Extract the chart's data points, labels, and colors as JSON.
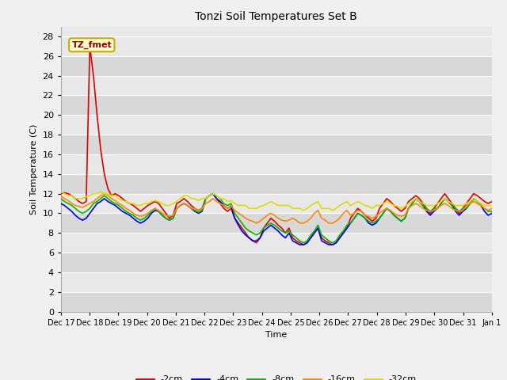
{
  "title": "Tonzi Soil Temperatures Set B",
  "xlabel": "Time",
  "ylabel": "Soil Temperature (C)",
  "annotation_text": "TZ_fmet",
  "annotation_color": "#8b0000",
  "annotation_bg": "#ffffcc",
  "annotation_border": "#ccaa00",
  "ylim": [
    0,
    29
  ],
  "yticks": [
    0,
    2,
    4,
    6,
    8,
    10,
    12,
    14,
    16,
    18,
    20,
    22,
    24,
    26,
    28
  ],
  "x_labels": [
    "Dec 17",
    "Dec 18",
    "Dec 19",
    "Dec 20",
    "Dec 21",
    "Dec 22",
    "Dec 23",
    "Dec 24",
    "Dec 25",
    "Dec 26",
    "Dec 27",
    "Dec 28",
    "Dec 29",
    "Dec 30",
    "Dec 31",
    "Jan 1"
  ],
  "bg_color": "#e8e8e8",
  "grid_color": "#ffffff",
  "series": {
    "-2cm": {
      "color": "#dd0000",
      "lw": 1.2
    },
    "-4cm": {
      "color": "#0000ee",
      "lw": 1.2
    },
    "-8cm": {
      "color": "#00bb00",
      "lw": 1.2
    },
    "-16cm": {
      "color": "#ff8800",
      "lw": 1.2
    },
    "-32cm": {
      "color": "#dddd00",
      "lw": 1.2
    }
  },
  "n_per_day": 8,
  "days": 15,
  "data": {
    "-2cm": [
      12.0,
      12.1,
      12.0,
      11.8,
      11.5,
      11.2,
      11.0,
      11.2,
      27.0,
      24.0,
      20.0,
      16.5,
      14.0,
      12.5,
      11.8,
      12.0,
      11.8,
      11.5,
      11.2,
      11.0,
      10.8,
      10.5,
      10.2,
      10.5,
      10.8,
      11.0,
      11.2,
      11.0,
      10.5,
      10.0,
      9.5,
      9.8,
      11.0,
      11.2,
      11.5,
      11.2,
      10.8,
      10.5,
      10.3,
      10.5,
      11.5,
      11.8,
      12.0,
      11.5,
      11.0,
      10.5,
      10.2,
      10.5,
      9.5,
      9.0,
      8.5,
      8.0,
      7.5,
      7.2,
      7.0,
      7.5,
      8.5,
      9.0,
      9.5,
      9.2,
      8.8,
      8.5,
      8.0,
      8.5,
      7.5,
      7.2,
      7.0,
      6.8,
      7.0,
      7.5,
      8.0,
      8.5,
      7.5,
      7.2,
      7.0,
      6.8,
      7.0,
      7.5,
      8.0,
      8.5,
      9.5,
      10.0,
      10.5,
      10.2,
      9.8,
      9.5,
      9.2,
      9.5,
      10.5,
      11.0,
      11.5,
      11.2,
      10.8,
      10.5,
      10.2,
      10.5,
      11.2,
      11.5,
      11.8,
      11.5,
      11.0,
      10.5,
      10.0,
      10.5,
      11.0,
      11.5,
      12.0,
      11.5,
      11.0,
      10.5,
      10.0,
      10.5,
      11.0,
      11.5,
      12.0,
      11.8,
      11.5,
      11.2,
      11.0,
      11.2
    ],
    "-4cm": [
      11.0,
      10.8,
      10.5,
      10.2,
      9.8,
      9.5,
      9.3,
      9.5,
      10.0,
      10.5,
      11.0,
      11.2,
      11.5,
      11.2,
      11.0,
      10.8,
      10.5,
      10.2,
      10.0,
      9.8,
      9.5,
      9.2,
      9.0,
      9.2,
      9.5,
      10.0,
      10.3,
      10.2,
      9.8,
      9.5,
      9.3,
      9.5,
      10.5,
      10.8,
      11.0,
      10.8,
      10.5,
      10.2,
      10.0,
      10.2,
      11.5,
      11.8,
      12.0,
      11.5,
      11.2,
      10.8,
      10.5,
      10.8,
      9.5,
      8.8,
      8.2,
      7.8,
      7.5,
      7.2,
      7.2,
      7.5,
      8.2,
      8.5,
      8.8,
      8.5,
      8.2,
      7.8,
      7.5,
      8.0,
      7.2,
      7.0,
      6.8,
      6.8,
      7.0,
      7.5,
      8.0,
      8.5,
      7.2,
      7.0,
      6.8,
      6.8,
      7.0,
      7.5,
      8.0,
      8.5,
      9.0,
      9.5,
      10.0,
      9.8,
      9.5,
      9.0,
      8.8,
      9.0,
      9.5,
      10.0,
      10.5,
      10.2,
      9.8,
      9.5,
      9.2,
      9.5,
      10.5,
      11.0,
      11.5,
      11.2,
      10.8,
      10.2,
      9.8,
      10.2,
      10.5,
      11.0,
      11.5,
      11.2,
      10.8,
      10.2,
      9.8,
      10.2,
      10.5,
      11.0,
      11.5,
      11.2,
      10.8,
      10.2,
      9.8,
      10.0
    ],
    "-8cm": [
      11.5,
      11.2,
      11.0,
      10.8,
      10.5,
      10.2,
      10.0,
      10.2,
      10.5,
      11.0,
      11.2,
      11.5,
      11.8,
      11.5,
      11.2,
      11.0,
      10.8,
      10.5,
      10.2,
      10.0,
      9.8,
      9.5,
      9.3,
      9.5,
      9.8,
      10.2,
      10.5,
      10.2,
      9.8,
      9.5,
      9.3,
      9.5,
      10.5,
      10.8,
      11.0,
      10.8,
      10.5,
      10.3,
      10.1,
      10.3,
      11.5,
      11.8,
      12.0,
      11.8,
      11.5,
      11.0,
      10.8,
      11.0,
      10.0,
      9.5,
      9.0,
      8.5,
      8.2,
      8.0,
      7.8,
      8.0,
      8.5,
      8.8,
      9.0,
      8.8,
      8.5,
      8.2,
      8.0,
      8.2,
      7.8,
      7.5,
      7.2,
      7.0,
      7.2,
      7.8,
      8.2,
      8.8,
      7.8,
      7.5,
      7.2,
      7.0,
      7.2,
      7.8,
      8.2,
      8.8,
      9.0,
      9.5,
      10.0,
      9.8,
      9.5,
      9.2,
      9.0,
      9.2,
      9.5,
      10.0,
      10.5,
      10.2,
      9.8,
      9.5,
      9.2,
      9.5,
      10.5,
      11.0,
      11.5,
      11.2,
      10.8,
      10.5,
      10.2,
      10.5,
      10.5,
      11.0,
      11.5,
      11.2,
      10.8,
      10.5,
      10.2,
      10.5,
      10.5,
      11.0,
      11.5,
      11.2,
      10.8,
      10.5,
      10.2,
      10.2
    ],
    "-16cm": [
      11.8,
      11.5,
      11.3,
      11.0,
      10.8,
      10.7,
      10.6,
      10.8,
      11.0,
      11.2,
      11.5,
      11.8,
      12.0,
      11.8,
      11.5,
      11.3,
      11.0,
      10.8,
      10.5,
      10.3,
      10.0,
      9.8,
      9.7,
      9.8,
      10.0,
      10.3,
      10.5,
      10.3,
      10.0,
      9.8,
      9.7,
      9.8,
      10.5,
      10.8,
      11.0,
      10.8,
      10.5,
      10.5,
      10.3,
      10.5,
      11.0,
      11.2,
      11.5,
      11.2,
      11.0,
      10.8,
      10.5,
      10.8,
      10.3,
      10.0,
      9.8,
      9.5,
      9.3,
      9.2,
      9.0,
      9.2,
      9.5,
      9.8,
      10.0,
      9.8,
      9.5,
      9.3,
      9.2,
      9.3,
      9.5,
      9.3,
      9.0,
      9.0,
      9.2,
      9.5,
      10.0,
      10.3,
      9.5,
      9.3,
      9.0,
      9.0,
      9.2,
      9.5,
      10.0,
      10.3,
      9.8,
      10.0,
      10.3,
      10.2,
      9.8,
      9.7,
      9.5,
      9.7,
      10.0,
      10.3,
      10.5,
      10.3,
      10.0,
      9.8,
      9.7,
      9.8,
      10.5,
      10.8,
      11.0,
      10.8,
      10.5,
      10.3,
      10.2,
      10.3,
      10.5,
      10.8,
      11.0,
      10.8,
      10.5,
      10.3,
      10.2,
      10.3,
      10.8,
      11.0,
      11.2,
      11.0,
      10.8,
      10.5,
      10.3,
      10.5
    ],
    "-32cm": [
      12.2,
      12.0,
      11.8,
      11.8,
      11.5,
      11.5,
      11.5,
      11.7,
      11.8,
      12.0,
      12.0,
      12.2,
      12.0,
      12.0,
      11.8,
      11.8,
      11.5,
      11.3,
      11.2,
      11.0,
      11.0,
      10.8,
      10.8,
      11.0,
      11.0,
      11.2,
      11.3,
      11.2,
      11.0,
      10.8,
      10.8,
      11.0,
      11.2,
      11.5,
      11.8,
      11.8,
      11.5,
      11.5,
      11.3,
      11.5,
      11.5,
      11.8,
      12.0,
      11.8,
      11.5,
      11.5,
      11.2,
      11.3,
      11.0,
      10.8,
      10.8,
      10.8,
      10.5,
      10.5,
      10.5,
      10.7,
      10.8,
      11.0,
      11.2,
      11.0,
      10.8,
      10.8,
      10.8,
      10.8,
      10.5,
      10.5,
      10.5,
      10.3,
      10.5,
      10.8,
      11.0,
      11.2,
      10.5,
      10.5,
      10.5,
      10.3,
      10.5,
      10.8,
      11.0,
      11.2,
      10.8,
      11.0,
      11.2,
      11.0,
      10.8,
      10.7,
      10.5,
      10.8,
      10.8,
      11.0,
      11.2,
      11.0,
      10.8,
      10.7,
      10.5,
      10.7,
      11.0,
      11.2,
      11.5,
      11.2,
      11.0,
      10.8,
      10.8,
      10.8,
      11.0,
      11.2,
      11.5,
      11.2,
      11.0,
      10.8,
      10.8,
      10.8,
      11.0,
      11.2,
      11.5,
      11.2,
      11.0,
      10.8,
      10.8,
      10.8
    ]
  }
}
